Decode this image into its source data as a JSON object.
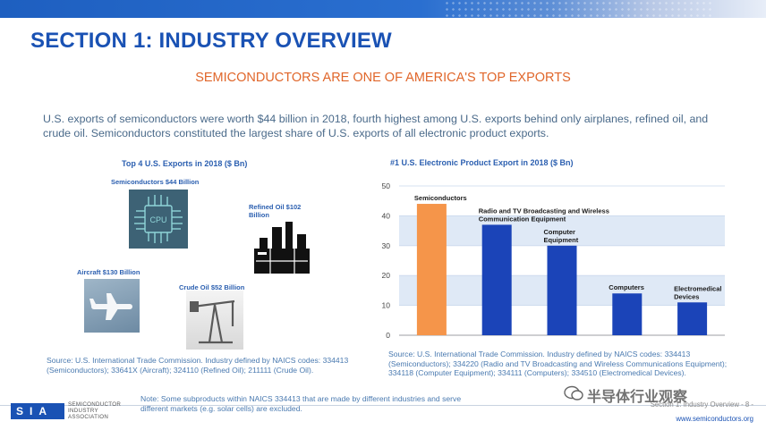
{
  "header": {
    "section_title": "SECTION 1: INDUSTRY OVERVIEW",
    "subtitle": "SEMICONDUCTORS ARE ONE OF AMERICA'S TOP EXPORTS",
    "summary": "U.S. exports of semiconductors were worth $44 billion in 2018, fourth highest among U.S. exports behind only airplanes, refined oil, and crude oil.  Semiconductors constituted the largest share of U.S. exports of all electronic product exports."
  },
  "left_panel": {
    "title": "Top 4 U.S. Exports in 2018 ($ Bn)",
    "items": [
      {
        "label": "Semiconductors $44 Billion",
        "icon": "cpu-chip-icon"
      },
      {
        "label": "Refined Oil $102 Billion",
        "icon": "refinery-icon"
      },
      {
        "label": "Aircraft $130 Billion",
        "icon": "airplane-icon"
      },
      {
        "label": "Crude Oil $52 Billion",
        "icon": "oil-pump-icon"
      }
    ],
    "chip_text": "CPU",
    "source": "Source: U.S. International Trade Commission. Industry defined by NAICS codes: 334413 (Semiconductors); 33641X (Aircraft); 324110 (Refined Oil); 211111 (Crude Oil).",
    "note": "Note: Some subproducts within NAICS 334413 that are made by different industries and serve different markets (e.g. solar cells) are excluded."
  },
  "chart_data": {
    "type": "bar",
    "title": "#1 U.S. Electronic Product Export in 2018 ($ Bn)",
    "categories": [
      "Semiconductors",
      "Radio and TV Broadcasting and Wireless Communication Equipment",
      "Computer Equipment",
      "Computers",
      "Electromedical Devices"
    ],
    "values": [
      44,
      37,
      30,
      14,
      11
    ],
    "bar_colors": [
      "#f5954a",
      "#1b44b8",
      "#1b44b8",
      "#1b44b8",
      "#1b44b8"
    ],
    "yticks": [
      0,
      10,
      20,
      30,
      40,
      50
    ],
    "ylim": [
      0,
      50
    ],
    "grid": true,
    "band_color": "#dfe9f6",
    "source": "Source: U.S. International Trade Commission. Industry defined by NAICS codes: 334413 (Semiconductors); 334220 (Radio and TV Broadcasting and Wireless Communications Equipment); 334118 (Computer Equipment); 334111 (Computers); 334510 (Electromedical Devices)."
  },
  "footer": {
    "logo_letters": "SIA",
    "logo_words": [
      "SEMICONDUCTOR",
      "INDUSTRY",
      "ASSOCIATION"
    ],
    "slide_ref": "Section 1: Industry Overview - 8 -",
    "url": "www.semiconductors.org",
    "watermark": "半导体行业观察"
  },
  "colors": {
    "title_blue": "#1a52b4",
    "accent_orange": "#e0662a"
  }
}
